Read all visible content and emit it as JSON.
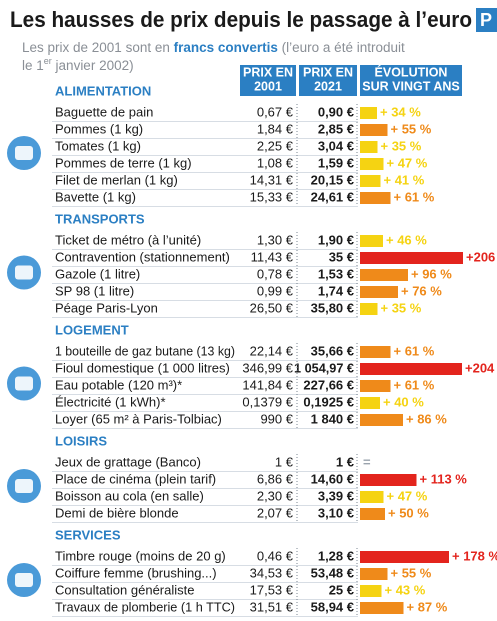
{
  "title": "Les hausses de prix depuis le passage à l’euro",
  "logo": "P",
  "subtitle": [
    "Les prix de 2001 sont en ",
    "francs convertis",
    " (l’euro a été introduit",
    "le 1",
    "er",
    " janvier 2002)"
  ],
  "columns": [
    [
      "PRIX EN",
      "2001"
    ],
    [
      "PRIX EN",
      "2021"
    ],
    [
      "ÉVOLUTION",
      "SUR VINGT ANS"
    ]
  ],
  "sections": [
    {
      "name": "ALIMENTATION",
      "rows": [
        {
          "label": "Baguette de pain",
          "price_2001": "0,67 €",
          "price_2021": "0,90 €",
          "change": 34,
          "change_label": "+ 34 %",
          "color": "#f5d312"
        },
        {
          "label": "Pommes (1 kg)",
          "price_2001": "1,84 €",
          "price_2021": "2,85 €",
          "change": 55,
          "change_label": "+ 55 %",
          "color": "#ef8a1a"
        },
        {
          "label": "Tomates (1 kg)",
          "price_2001": "2,25 €",
          "price_2021": "3,04 €",
          "change": 35,
          "change_label": "+ 35 %",
          "color": "#f5d312"
        },
        {
          "label": "Pommes de terre (1 kg)",
          "price_2001": "1,08 €",
          "price_2021": "1,59 €",
          "change": 47,
          "change_label": "+ 47 %",
          "color": "#f5d312"
        },
        {
          "label": "Filet de merlan (1 kg)",
          "price_2001": "14,31 €",
          "price_2021": "20,15 €",
          "change": 41,
          "change_label": "+ 41 %",
          "color": "#f5d312"
        },
        {
          "label": "Bavette (1 kg)",
          "price_2001": "15,33 €",
          "price_2021": "24,61 €",
          "change": 61,
          "change_label": "+ 61 %",
          "color": "#ef8a1a"
        }
      ]
    },
    {
      "name": "TRANSPORTS",
      "rows": [
        {
          "label": "Ticket de métro (à l’unité)",
          "price_2001": "1,30 €",
          "price_2021": "1,90 €",
          "change": 46,
          "change_label": "+ 46 %",
          "color": "#f5d312"
        },
        {
          "label": "Contravention (stationnement)",
          "price_2001": "11,43 €",
          "price_2021": "35 €",
          "change": 206,
          "change_label": "+206",
          "color": "#e3241d"
        },
        {
          "label": "Gazole (1 litre)",
          "price_2001": "0,78 €",
          "price_2021": "1,53 €",
          "change": 96,
          "change_label": "+ 96 %",
          "color": "#ef8a1a"
        },
        {
          "label": "SP 98 (1 litre)",
          "price_2001": "0,99 €",
          "price_2021": "1,74 €",
          "change": 76,
          "change_label": "+ 76 %",
          "color": "#ef8a1a"
        },
        {
          "label": "Péage Paris-Lyon",
          "price_2001": "26,50 €",
          "price_2021": "35,80 €",
          "change": 35,
          "change_label": "+ 35 %",
          "color": "#f5d312"
        }
      ]
    },
    {
      "name": "LOGEMENT",
      "rows": [
        {
          "label": "1 bouteille de gaz butane (13 kg)",
          "price_2001": "22,14 €",
          "price_2021": "35,66 €",
          "change": 61,
          "change_label": "+ 61 %",
          "color": "#ef8a1a"
        },
        {
          "label": "Fioul domestique (1 000 litres)",
          "price_2001": "346,99 €",
          "price_2021": "1 054,97 €",
          "change": 204,
          "change_label": "+204",
          "color": "#e3241d"
        },
        {
          "label": "Eau potable (120 m³)*",
          "price_2001": "141,84 €",
          "price_2021": "227,66 €",
          "change": 61,
          "change_label": "+ 61 %",
          "color": "#ef8a1a"
        },
        {
          "label": "Électricité (1 kWh)*",
          "price_2001": "0,1379 €",
          "price_2021": "0,1925 €",
          "change": 40,
          "change_label": "+ 40 %",
          "color": "#f5d312"
        },
        {
          "label": "Loyer (65 m² à Paris-Tolbiac)",
          "price_2001": "990 €",
          "price_2021": "1 840 €",
          "change": 86,
          "change_label": "+ 86 %",
          "color": "#ef8a1a"
        }
      ]
    },
    {
      "name": "LOISIRS",
      "rows": [
        {
          "label": "Jeux de grattage (Banco)",
          "price_2001": "1 €",
          "price_2021": "1 €",
          "change": 0,
          "change_label": "=",
          "color": "#9aa3ad"
        },
        {
          "label": "Place de cinéma (plein tarif)",
          "price_2001": "6,86 €",
          "price_2021": "14,60 €",
          "change": 113,
          "change_label": "+ 113 %",
          "color": "#e3241d"
        },
        {
          "label": "Boisson au cola (en salle)",
          "price_2001": "2,30 €",
          "price_2021": "3,39 €",
          "change": 47,
          "change_label": "+ 47 %",
          "color": "#f5d312"
        },
        {
          "label": "Demi de bière blonde",
          "price_2001": "2,07 €",
          "price_2021": "3,10 €",
          "change": 50,
          "change_label": "+ 50 %",
          "color": "#ef8a1a"
        }
      ]
    },
    {
      "name": "SERVICES",
      "rows": [
        {
          "label": "Timbre rouge (moins de 20 g)",
          "price_2001": "0,46 €",
          "price_2021": "1,28 €",
          "change": 178,
          "change_label": "+ 178 %",
          "color": "#e3241d"
        },
        {
          "label": "Coiffure femme (brushing...)",
          "price_2001": "34,53 €",
          "price_2021": "53,48 €",
          "change": 55,
          "change_label": "+ 55 %",
          "color": "#ef8a1a"
        },
        {
          "label": "Consultation généraliste",
          "price_2001": "17,53 €",
          "price_2021": "25 €",
          "change": 43,
          "change_label": "+ 43 %",
          "color": "#f5d312"
        },
        {
          "label": "Travaux de plomberie (1 h TTC)",
          "price_2001": "31,51 €",
          "price_2021": "58,94 €",
          "change": 87,
          "change_label": "+ 87 %",
          "color": "#ef8a1a"
        }
      ]
    }
  ]
}
